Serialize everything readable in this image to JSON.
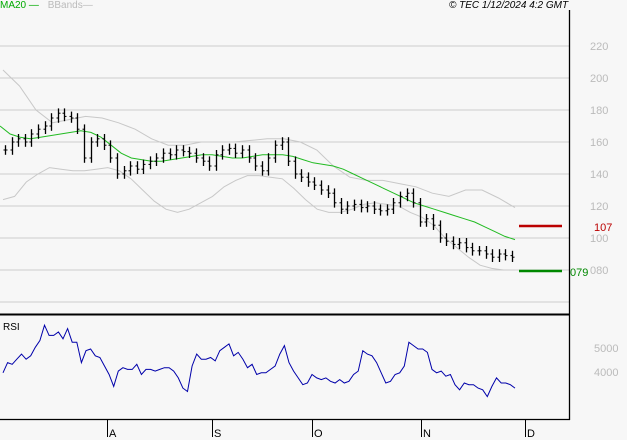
{
  "header": {
    "legend": [
      {
        "label": "MA20",
        "color": "#00aa00"
      },
      {
        "label": "BBands",
        "color": "#bbbbbb"
      }
    ],
    "copyright": "© TEC 1/12/2024 4:2 GMT"
  },
  "price_axis": {
    "ticks": [
      "220",
      "200",
      "180",
      "160",
      "140",
      "120",
      "100",
      "080"
    ]
  },
  "levels": {
    "resistance": {
      "label": "107",
      "color": "#bb0000",
      "value": 107
    },
    "support": {
      "label": "079",
      "color": "#008800",
      "value": 79
    }
  },
  "rsi": {
    "title": "RSI",
    "ticks": [
      "5000",
      "4000"
    ]
  },
  "months": [
    "A",
    "S",
    "O",
    "N",
    "D"
  ],
  "chart_data": [
    {
      "type": "ohlc",
      "title": "Price with MA20 and Bollinger Bands",
      "xlabel": "",
      "ylabel": "",
      "ylim": [
        60,
        235
      ],
      "x_ticks": [
        "A",
        "S",
        "O",
        "N",
        "D"
      ],
      "y_ticks": [
        80,
        100,
        120,
        140,
        160,
        180,
        200,
        220
      ],
      "grid": true,
      "series": [
        {
          "name": "Close",
          "values": [
            155,
            160,
            162,
            160,
            165,
            168,
            170,
            175,
            178,
            176,
            175,
            168,
            150,
            160,
            162,
            158,
            150,
            140,
            142,
            145,
            143,
            146,
            148,
            150,
            153,
            152,
            155,
            154,
            153,
            150,
            148,
            145,
            152,
            155,
            156,
            153,
            155,
            150,
            145,
            142,
            150,
            158,
            160,
            148,
            140,
            138,
            135,
            133,
            130,
            128,
            122,
            118,
            120,
            121,
            119,
            120,
            118,
            117,
            118,
            122,
            126,
            128,
            122,
            110,
            112,
            108,
            100,
            98,
            96,
            97,
            94,
            92,
            92,
            90,
            88,
            90,
            89,
            88
          ]
        },
        {
          "name": "MA20",
          "color": "#00aa00",
          "values": [
            170,
            165,
            163,
            162,
            163,
            164,
            165,
            166,
            167,
            166,
            163,
            158,
            153,
            150,
            149,
            148,
            148,
            149,
            150,
            151,
            152,
            152,
            151,
            150,
            150,
            151,
            152,
            152,
            152,
            151,
            149,
            147,
            146,
            145,
            143,
            140,
            137,
            134,
            131,
            128,
            125,
            122,
            120,
            118,
            116,
            114,
            112,
            110,
            107,
            104,
            101,
            99
          ]
        },
        {
          "name": "BB upper",
          "color": "#bbbbbb",
          "values": [
            205,
            195,
            180,
            172,
            174,
            176,
            175,
            172,
            168,
            162,
            158,
            158,
            160,
            160,
            160,
            161,
            162,
            162,
            160,
            155,
            145,
            138,
            136,
            136,
            134,
            132,
            128,
            126,
            130,
            130,
            125,
            119
          ]
        },
        {
          "name": "BB lower",
          "color": "#bbbbbb",
          "values": [
            124,
            126,
            135,
            140,
            144,
            143,
            142,
            142,
            143,
            144,
            142,
            137,
            130,
            123,
            118,
            116,
            118,
            122,
            126,
            132,
            136,
            139,
            139,
            138,
            137,
            131,
            124,
            118,
            116,
            116,
            118,
            121,
            122,
            121,
            120,
            116,
            113,
            108,
            100,
            94,
            88,
            83,
            81,
            80,
            80
          ]
        }
      ],
      "annotations": [
        {
          "label": "107",
          "value": 107,
          "color": "#bb0000"
        },
        {
          "label": "079",
          "value": 79,
          "color": "#008800"
        }
      ]
    },
    {
      "type": "line",
      "title": "RSI",
      "y_ticks": [
        "5000",
        "4000"
      ],
      "x_ticks": [
        "A",
        "S",
        "O",
        "N",
        "D"
      ],
      "series": [
        {
          "name": "RSI",
          "color": "#0000aa",
          "values": [
            46,
            52,
            51,
            54,
            57,
            54,
            56,
            61,
            65,
            74,
            68,
            68,
            70,
            66,
            72,
            64,
            64,
            52,
            59,
            60,
            56,
            55,
            50,
            45,
            38,
            47,
            49,
            48,
            48,
            51,
            45,
            48,
            48,
            47,
            48,
            49,
            49,
            47,
            43,
            37,
            35,
            50,
            57,
            54,
            54,
            55,
            53,
            59,
            61,
            63,
            56,
            58,
            54,
            49,
            51,
            45,
            46,
            46,
            48,
            50,
            57,
            62,
            52,
            47,
            43,
            39,
            40,
            45,
            43,
            42,
            43,
            41,
            40,
            42,
            40,
            41,
            45,
            47,
            59,
            57,
            56,
            52,
            46,
            40,
            41,
            45,
            46,
            50,
            64,
            62,
            60,
            60,
            58,
            48,
            46,
            47,
            44,
            45,
            39,
            36,
            40,
            39,
            39,
            37,
            36,
            32,
            38,
            43,
            40,
            40,
            39,
            37
          ]
        }
      ]
    }
  ]
}
